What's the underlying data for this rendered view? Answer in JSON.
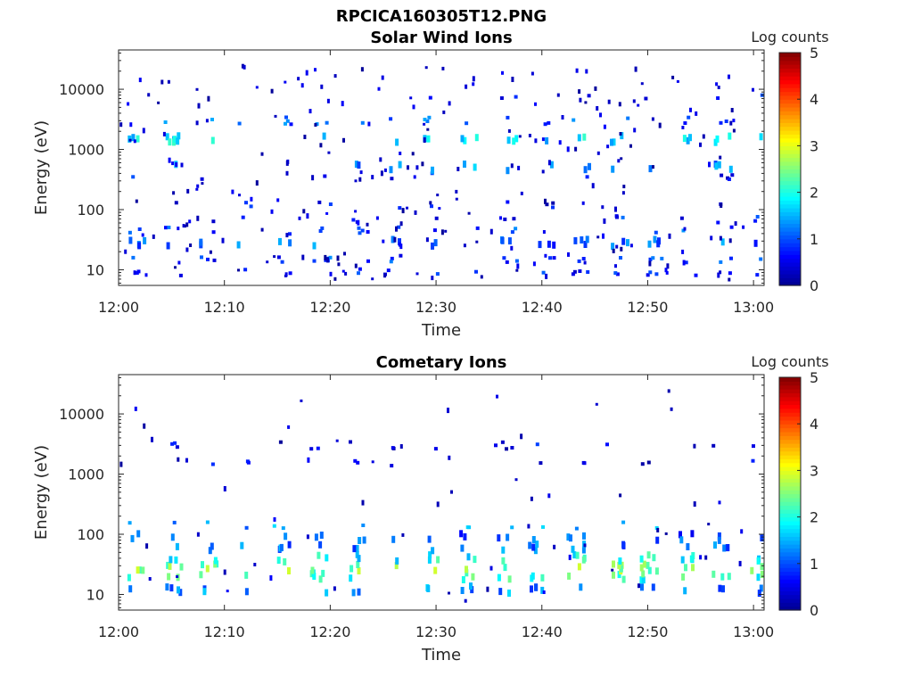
{
  "figure": {
    "title": "RPCICA160305T12.PNG"
  },
  "colormap": {
    "name": "jet",
    "stops": [
      "#00008f",
      "#0000ff",
      "#0080ff",
      "#00ffff",
      "#80ff80",
      "#ffff00",
      "#ff8000",
      "#ff0000",
      "#800000"
    ]
  },
  "chart_data": [
    {
      "type": "heatmap",
      "title": "Solar Wind Ions",
      "xlabel": "Time",
      "ylabel": "Energy (eV)",
      "yscale": "log",
      "xlim": [
        "12:00",
        "13:01"
      ],
      "ylim": [
        5.5,
        45000
      ],
      "xticks": [
        "12:00",
        "12:10",
        "12:20",
        "12:30",
        "12:40",
        "12:50",
        "13:00"
      ],
      "yticks": [
        10,
        100,
        1000,
        10000
      ],
      "ytick_labels": [
        "10",
        "100",
        "1000",
        "10000"
      ],
      "colorbar": {
        "label": "Log counts",
        "range": [
          0,
          5
        ],
        "ticks": [
          "0",
          "1",
          "2",
          "3",
          "4",
          "5"
        ]
      },
      "grid": false,
      "bands": [
        {
          "energy": 9,
          "count": 24,
          "level": 0.6,
          "spread": 1
        },
        {
          "energy": 15,
          "count": 30,
          "level": 0.8,
          "spread": 1
        },
        {
          "energy": 28,
          "count": 34,
          "level": 1.0,
          "spread": 2
        },
        {
          "energy": 45,
          "count": 20,
          "level": 0.9,
          "spread": 1
        },
        {
          "energy": 70,
          "count": 14,
          "level": 0.7,
          "spread": 1
        },
        {
          "energy": 120,
          "count": 12,
          "level": 0.5,
          "spread": 1
        },
        {
          "energy": 350,
          "count": 10,
          "level": 0.5,
          "spread": 1
        },
        {
          "energy": 500,
          "count": 18,
          "level": 1.2,
          "spread": 2
        },
        {
          "energy": 1500,
          "count": 34,
          "level": 1.7,
          "spread": 2
        },
        {
          "energy": 3000,
          "count": 24,
          "level": 1.0,
          "spread": 1
        },
        {
          "energy": 7000,
          "count": 8,
          "level": 0.5,
          "spread": 1
        }
      ],
      "scatter_counts": 260
    },
    {
      "type": "heatmap",
      "title": "Cometary Ions",
      "xlabel": "Time",
      "ylabel": "Energy (eV)",
      "yscale": "log",
      "xlim": [
        "12:00",
        "13:01"
      ],
      "ylim": [
        5.5,
        45000
      ],
      "xticks": [
        "12:00",
        "12:10",
        "12:20",
        "12:30",
        "12:40",
        "12:50",
        "13:00"
      ],
      "yticks": [
        10,
        100,
        1000,
        10000
      ],
      "ytick_labels": [
        "10",
        "100",
        "1000",
        "10000"
      ],
      "colorbar": {
        "label": "Log counts",
        "range": [
          0,
          5
        ],
        "ticks": [
          "0",
          "1",
          "2",
          "3",
          "4",
          "5"
        ]
      },
      "grid": false,
      "bands": [
        {
          "energy": 12,
          "count": 30,
          "level": 1.2,
          "spread": 2
        },
        {
          "energy": 20,
          "count": 34,
          "level": 2.0,
          "spread": 2
        },
        {
          "energy": 28,
          "count": 34,
          "level": 2.4,
          "spread": 2
        },
        {
          "energy": 40,
          "count": 30,
          "level": 1.8,
          "spread": 2
        },
        {
          "energy": 60,
          "count": 28,
          "level": 1.1,
          "spread": 2
        },
        {
          "energy": 90,
          "count": 26,
          "level": 0.9,
          "spread": 2
        },
        {
          "energy": 140,
          "count": 16,
          "level": 1.2,
          "spread": 1
        },
        {
          "energy": 1500,
          "count": 12,
          "level": 0.4,
          "spread": 1
        },
        {
          "energy": 3000,
          "count": 18,
          "level": 0.4,
          "spread": 1
        }
      ],
      "scatter_counts": 60
    }
  ]
}
